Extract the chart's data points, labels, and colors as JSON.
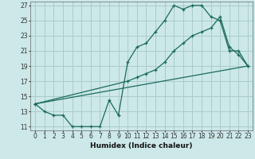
{
  "xlabel": "Humidex (Indice chaleur)",
  "bg_color": "#cce8e8",
  "grid_color": "#aacccc",
  "line_color": "#1a6b5a",
  "xlim": [
    -0.5,
    23.5
  ],
  "ylim": [
    10.5,
    27.5
  ],
  "xticks": [
    0,
    1,
    2,
    3,
    4,
    5,
    6,
    7,
    8,
    9,
    10,
    11,
    12,
    13,
    14,
    15,
    16,
    17,
    18,
    19,
    20,
    21,
    22,
    23
  ],
  "yticks": [
    11,
    13,
    15,
    17,
    19,
    21,
    23,
    25,
    27
  ],
  "line1_x": [
    0,
    1,
    2,
    3,
    4,
    5,
    6,
    7,
    8,
    9,
    10,
    11,
    12,
    13,
    14,
    15,
    16,
    17,
    18,
    19,
    20,
    21,
    22,
    23
  ],
  "line1_y": [
    14,
    13,
    12.5,
    12.5,
    11,
    11,
    11,
    11,
    14.5,
    12.5,
    19.5,
    21.5,
    22,
    23.5,
    25,
    27,
    26.5,
    27,
    27,
    25.5,
    25,
    21,
    21,
    19
  ],
  "line2_x": [
    0,
    10,
    11,
    12,
    13,
    14,
    15,
    16,
    17,
    18,
    19,
    20,
    21,
    22,
    23
  ],
  "line2_y": [
    14,
    17,
    17.5,
    18,
    18.5,
    19.5,
    21,
    22,
    23,
    23.5,
    24,
    25.5,
    21.5,
    20.5,
    19
  ],
  "line3_x": [
    0,
    23
  ],
  "line3_y": [
    14,
    19
  ]
}
